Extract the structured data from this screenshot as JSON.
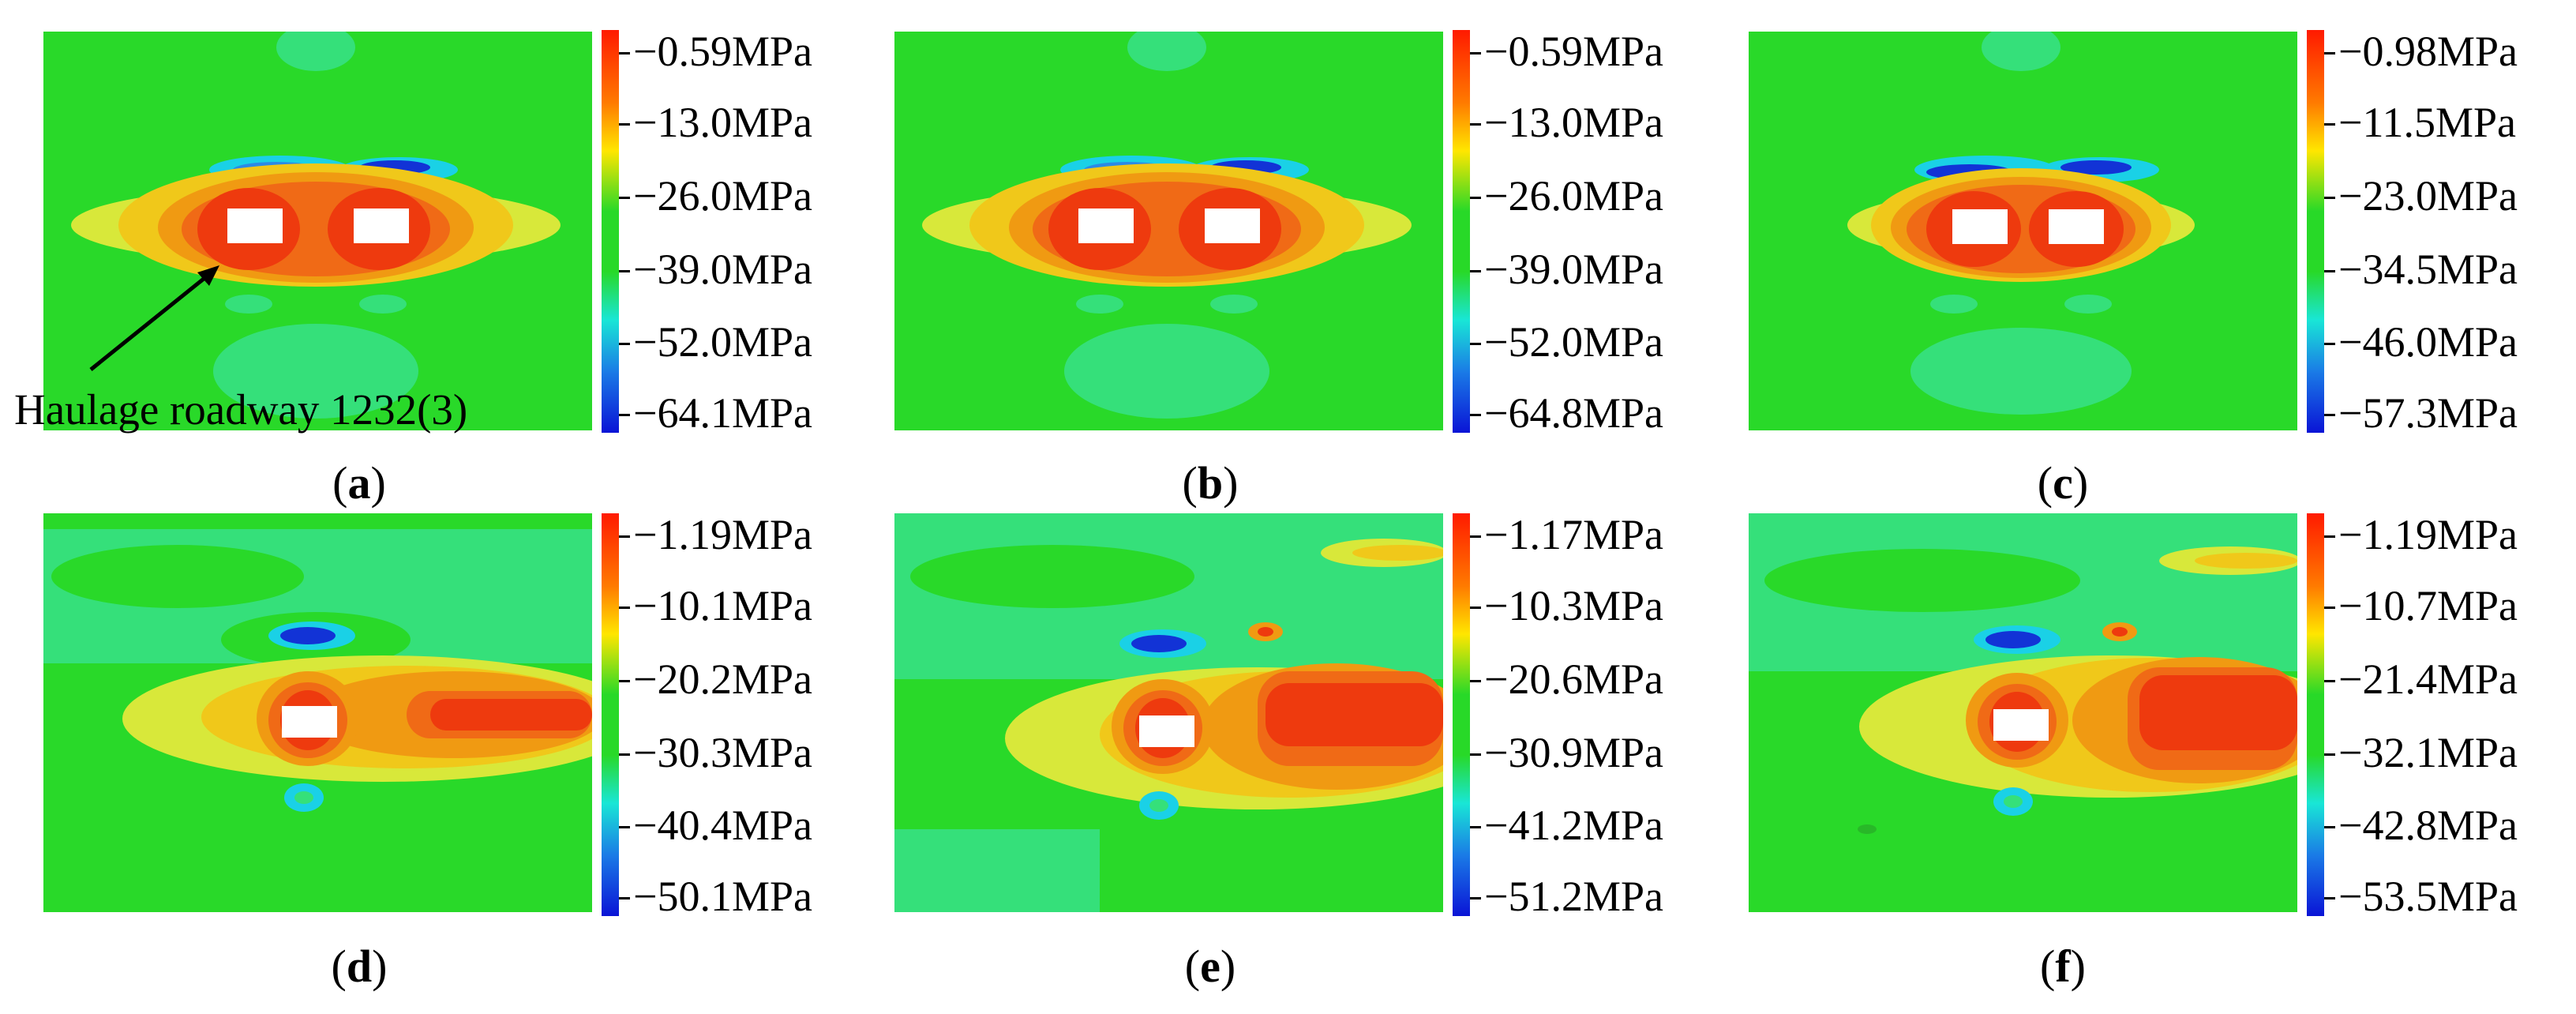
{
  "figure": {
    "annotation": "Haulage roadway 1232(3)",
    "panels": [
      {
        "id": "a",
        "caption_open": "(",
        "caption_letter": "a",
        "caption_close": ")",
        "legend": [
          "−0.59MPa",
          "−13.0MPa",
          "−26.0MPa",
          "−39.0MPa",
          "−52.0MPa",
          "−64.1MPa"
        ],
        "openings": 2
      },
      {
        "id": "b",
        "caption_open": "(",
        "caption_letter": "b",
        "caption_close": ")",
        "legend": [
          "−0.59MPa",
          "−13.0MPa",
          "−26.0MPa",
          "−39.0MPa",
          "−52.0MPa",
          "−64.8MPa"
        ],
        "openings": 2
      },
      {
        "id": "c",
        "caption_open": "(",
        "caption_letter": "c",
        "caption_close": ")",
        "legend": [
          "−0.98MPa",
          "−11.5MPa",
          "−23.0MPa",
          "−34.5MPa",
          "−46.0MPa",
          "−57.3MPa"
        ],
        "openings": 2
      },
      {
        "id": "d",
        "caption_open": "(",
        "caption_letter": "d",
        "caption_close": ")",
        "legend": [
          "−1.19MPa",
          "−10.1MPa",
          "−20.2MPa",
          "−30.3MPa",
          "−40.4MPa",
          "−50.1MPa"
        ],
        "openings": 1
      },
      {
        "id": "e",
        "caption_open": "(",
        "caption_letter": "e",
        "caption_close": ")",
        "legend": [
          "−1.17MPa",
          "−10.3MPa",
          "−20.6MPa",
          "−30.9MPa",
          "−41.2MPa",
          "−51.2MPa"
        ],
        "openings": 1
      },
      {
        "id": "f",
        "caption_open": "(",
        "caption_letter": "f",
        "caption_close": ")",
        "legend": [
          "−1.19MPa",
          "−10.7MPa",
          "−21.4MPa",
          "−32.1MPa",
          "−42.8MPa",
          "−53.5MPa"
        ],
        "openings": 1
      }
    ]
  },
  "chart_data": [
    {
      "type": "heatmap",
      "panel": "a",
      "title": "(a)",
      "colorbar_ticks": [
        -0.59,
        -13.0,
        -26.0,
        -39.0,
        -52.0,
        -64.1
      ],
      "unit": "MPa"
    },
    {
      "type": "heatmap",
      "panel": "b",
      "title": "(b)",
      "colorbar_ticks": [
        -0.59,
        -13.0,
        -26.0,
        -39.0,
        -52.0,
        -64.8
      ],
      "unit": "MPa"
    },
    {
      "type": "heatmap",
      "panel": "c",
      "title": "(c)",
      "colorbar_ticks": [
        -0.98,
        -11.5,
        -23.0,
        -34.5,
        -46.0,
        -57.3
      ],
      "unit": "MPa"
    },
    {
      "type": "heatmap",
      "panel": "d",
      "title": "(d)",
      "colorbar_ticks": [
        -1.19,
        -10.1,
        -20.2,
        -30.3,
        -40.4,
        -50.1
      ],
      "unit": "MPa"
    },
    {
      "type": "heatmap",
      "panel": "e",
      "title": "(e)",
      "colorbar_ticks": [
        -1.17,
        -10.3,
        -20.6,
        -30.9,
        -41.2,
        -51.2
      ],
      "unit": "MPa"
    },
    {
      "type": "heatmap",
      "panel": "f",
      "title": "(f)",
      "colorbar_ticks": [
        -1.19,
        -10.7,
        -21.4,
        -32.1,
        -42.8,
        -53.5
      ],
      "unit": "MPa"
    }
  ]
}
